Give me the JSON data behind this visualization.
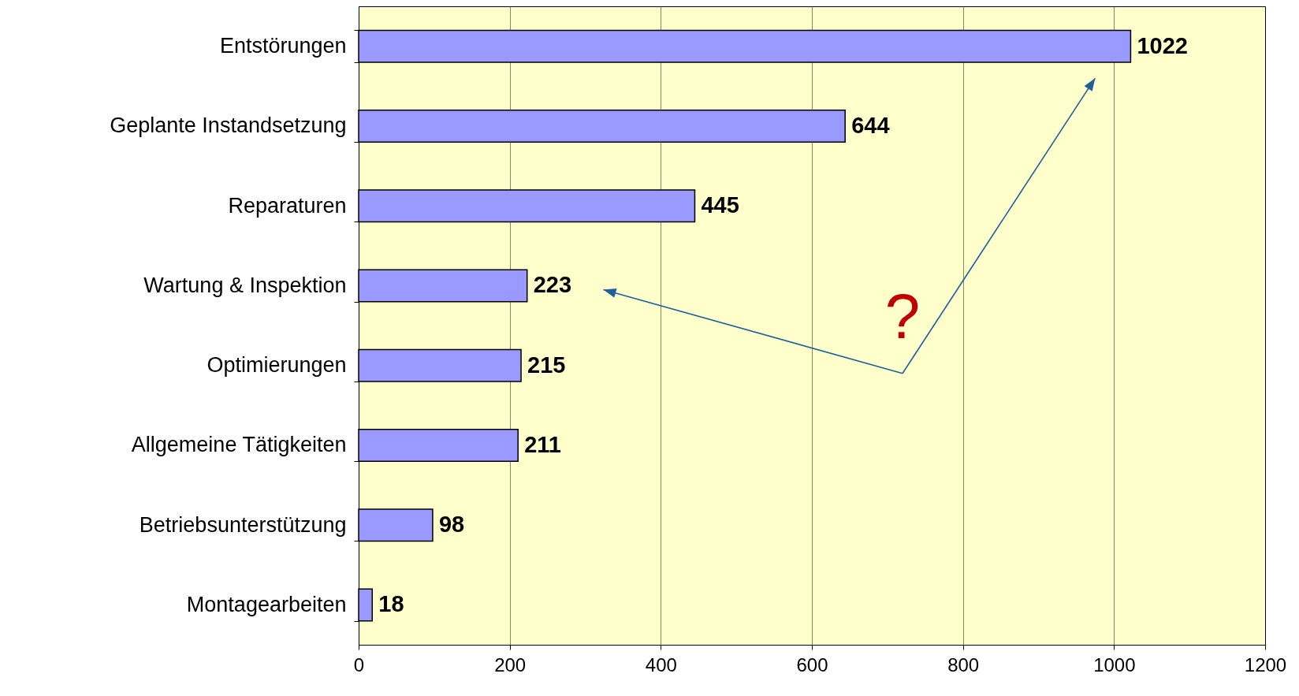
{
  "chart_data": {
    "type": "bar",
    "orientation": "horizontal",
    "categories": [
      "Entstörungen",
      "Geplante Instandsetzung",
      "Reparaturen",
      "Wartung & Inspektion",
      "Optimierungen",
      "Allgemeine Tätigkeiten",
      "Betriebsunterstützung",
      "Montagearbeiten"
    ],
    "values": [
      1022,
      644,
      445,
      223,
      215,
      211,
      98,
      18
    ],
    "color": "#9999ff",
    "xlim": [
      0,
      1200
    ],
    "xticks": [
      0,
      200,
      400,
      600,
      800,
      1000,
      1200
    ],
    "grid": "x",
    "data_labels": true,
    "annotations": [
      "?"
    ]
  }
}
